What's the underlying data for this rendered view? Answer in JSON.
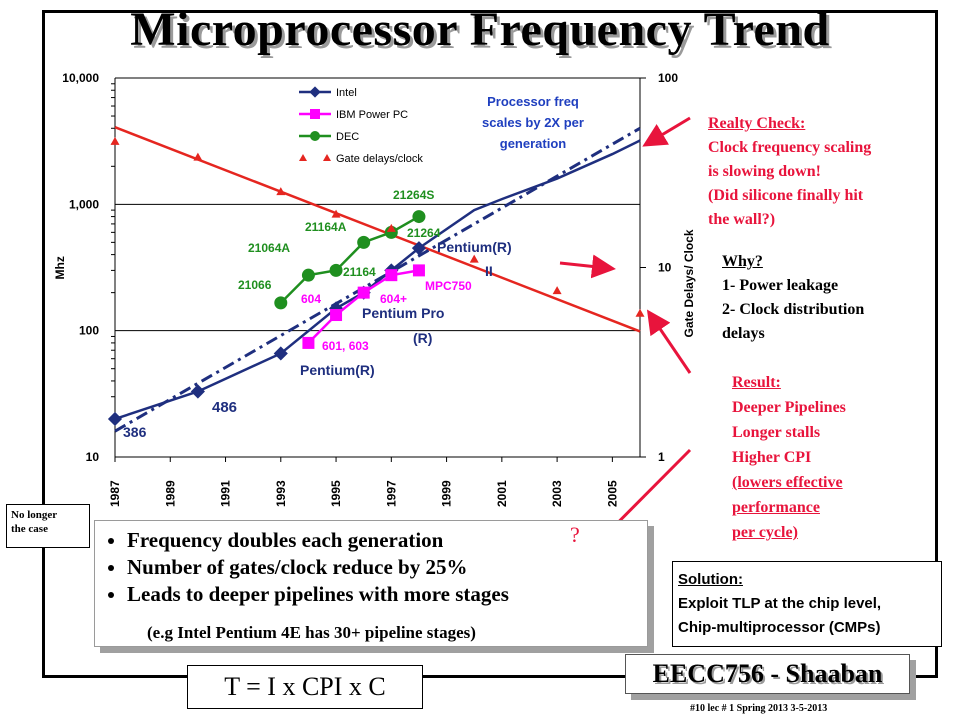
{
  "slide": {
    "title": "Microprocessor Frequency Trend",
    "no_longer_note": [
      "No longer",
      "the case"
    ],
    "question_mark": "?",
    "bullets": [
      "Frequency doubles each generation",
      "Number of gates/clock reduce by 25%",
      "Leads to deeper pipelines with more stages"
    ],
    "bullet_sub": "(e.g Intel Pentium 4E  has 30+ pipeline stages)",
    "formula": "T =  I  x  CPI   x C",
    "footer_brand": "EECC756 - Shaaban",
    "footer_meta": "#10   lec # 1    Spring 2013   3-5-2013",
    "reality_check": {
      "heading": "Realty Check:",
      "lines": [
        "Clock frequency scaling",
        "is slowing down!",
        "(Did silicone finally hit",
        "the wall?)"
      ]
    },
    "why": {
      "heading": "Why?",
      "lines": [
        "1- Power leakage",
        "2- Clock distribution",
        "delays"
      ]
    },
    "result": {
      "heading": "Result:",
      "lines": [
        "Deeper Pipelines",
        "Longer stalls",
        "Higher CPI",
        "(lowers effective ",
        "performance ",
        "per cycle)"
      ]
    },
    "solution": {
      "heading": "Solution:",
      "lines": [
        "Exploit TLP at the chip level,",
        "Chip-multiprocessor (CMPs)"
      ]
    },
    "colors": {
      "intel": "#1f2f7f",
      "ibm": "#ff00ff",
      "dec": "#1f8f1f",
      "gates": "#e52620",
      "annotation": "#e8143c"
    }
  },
  "chart_data": {
    "type": "line",
    "y_left_label": "Mhz",
    "y_right_label": "Gate Delays/ Clock",
    "y_left_scale": "log",
    "y_right_scale": "log",
    "ylim_left": [
      10,
      10000
    ],
    "ylim_right": [
      1,
      100
    ],
    "xlim": [
      1987,
      2006
    ],
    "x_ticks": [
      "1987",
      "1989",
      "1991",
      "1993",
      "1995",
      "1997",
      "1999",
      "2001",
      "2003",
      "2005"
    ],
    "y_left_ticks": [
      "10",
      "100",
      "1,000",
      "10,000"
    ],
    "y_right_ticks": [
      "1",
      "10",
      "100"
    ],
    "grid": "horizontal",
    "legend": [
      "Intel",
      "IBM Power PC",
      "DEC",
      "Gate delays/clock"
    ],
    "scaling_note": [
      "Processor  freq",
      "scales  by  2X  per",
      "generation"
    ],
    "series": [
      {
        "name": "Intel",
        "points": [
          [
            1987,
            20
          ],
          [
            1990,
            33
          ],
          [
            1993,
            66
          ],
          [
            1995,
            150
          ],
          [
            1996,
            200
          ],
          [
            1997,
            300
          ],
          [
            1998,
            450
          ],
          [
            2000,
            900
          ],
          [
            2001,
            1100
          ],
          [
            2003,
            1600
          ],
          [
            2005,
            2500
          ],
          [
            2006,
            3200
          ]
        ]
      },
      {
        "name": "IBM Power PC",
        "points": [
          [
            1994,
            80
          ],
          [
            1995,
            133
          ],
          [
            1996,
            200
          ],
          [
            1997,
            275
          ],
          [
            1998,
            300
          ]
        ]
      },
      {
        "name": "DEC",
        "points": [
          [
            1993,
            166
          ],
          [
            1994,
            275
          ],
          [
            1995,
            300
          ],
          [
            1996,
            500
          ],
          [
            1997,
            600
          ],
          [
            1998,
            800
          ]
        ]
      },
      {
        "name": "Gate delays/clock",
        "axis": "right",
        "points": [
          [
            1987,
            46
          ],
          [
            1990,
            38
          ],
          [
            1993,
            25
          ],
          [
            1995,
            19
          ],
          [
            1997,
            16
          ],
          [
            2000,
            11
          ],
          [
            2003,
            7.5
          ],
          [
            2006,
            5.7
          ]
        ]
      }
    ],
    "gate_trend_line": [
      [
        1987,
        55
      ],
      [
        2006,
        4.6
      ]
    ],
    "freq_trend_line": [
      [
        1987,
        16
      ],
      [
        2006,
        4000
      ]
    ],
    "point_labels": [
      {
        "text": "386",
        "series": "Intel"
      },
      {
        "text": "486",
        "series": "Intel"
      },
      {
        "text": "Pentium(R)",
        "series": "Intel"
      },
      {
        "text": "Pentium Pro",
        "series": "Intel"
      },
      {
        "text": "(R)",
        "series": "Intel"
      },
      {
        "text": "Pentium(R)",
        "series": "Intel"
      },
      {
        "text": "II",
        "series": "Intel"
      },
      {
        "text": "601,  603",
        "series": "IBM Power PC"
      },
      {
        "text": "604",
        "series": "IBM Power PC"
      },
      {
        "text": "604+",
        "series": "IBM Power PC"
      },
      {
        "text": "MPC750",
        "series": "IBM Power PC"
      },
      {
        "text": "21066",
        "series": "DEC"
      },
      {
        "text": "21064A",
        "series": "DEC"
      },
      {
        "text": "21164A",
        "series": "DEC"
      },
      {
        "text": "21164",
        "series": "DEC"
      },
      {
        "text": "21264",
        "series": "DEC"
      },
      {
        "text": "21264S",
        "series": "DEC"
      }
    ]
  }
}
